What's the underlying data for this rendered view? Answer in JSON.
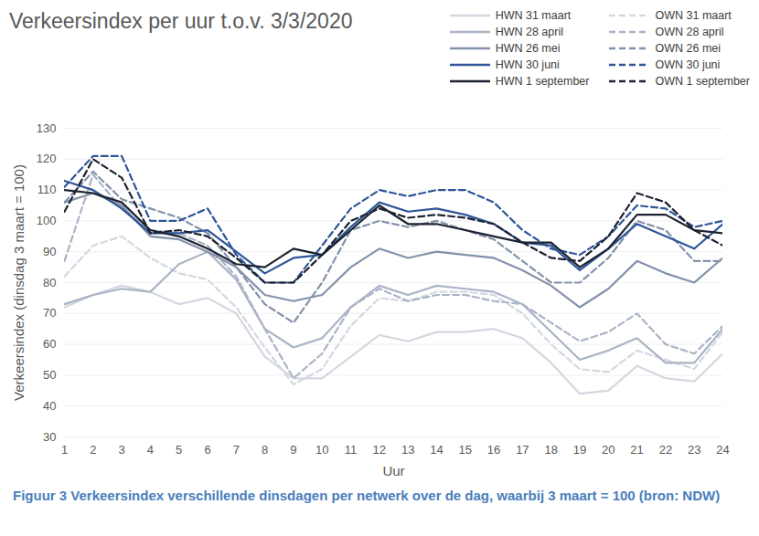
{
  "chart_data": {
    "type": "line",
    "title": "Verkeersindex per uur t.o.v. 3/3/2020",
    "x_label": "Uur",
    "y_label": "Verkeersindex (dinsdag 3 maart = 100)",
    "caption": "Figuur 3 Verkeersindex verschillende dinsdagen per netwerk over de dag, waarbij 3 maart = 100 (bron: NDW)",
    "x": [
      1,
      2,
      3,
      4,
      5,
      6,
      7,
      8,
      9,
      10,
      11,
      12,
      13,
      14,
      15,
      16,
      17,
      18,
      19,
      20,
      21,
      22,
      23,
      24
    ],
    "xlim": [
      1,
      24
    ],
    "xticks": [
      1,
      2,
      3,
      4,
      5,
      6,
      7,
      8,
      9,
      10,
      11,
      12,
      13,
      14,
      15,
      16,
      17,
      18,
      19,
      20,
      21,
      22,
      23,
      24
    ],
    "ylim": [
      30,
      130
    ],
    "yticks": [
      30,
      40,
      50,
      60,
      70,
      80,
      90,
      100,
      110,
      120,
      130
    ],
    "grid": true,
    "legend": "top-right",
    "series": [
      {
        "name": "HWN 31 maart",
        "color": "#d3d8e0",
        "line_style": "solid",
        "values": [
          72,
          76,
          79,
          77,
          73,
          75,
          70,
          56,
          49,
          49,
          56,
          63,
          61,
          64,
          64,
          65,
          62,
          54,
          44,
          45,
          53,
          49,
          48,
          57
        ]
      },
      {
        "name": "OWN 31 maart",
        "color": "#d3d8e0",
        "line_style": "dashed",
        "values": [
          82,
          92,
          95,
          88,
          83,
          81,
          72,
          59,
          47,
          52,
          66,
          75,
          74,
          77,
          77,
          76,
          70,
          60,
          52,
          51,
          58,
          55,
          52,
          64
        ]
      },
      {
        "name": "HWN 28 april",
        "color": "#aab4c6",
        "line_style": "solid",
        "values": [
          73,
          76,
          78,
          77,
          86,
          90,
          81,
          65,
          59,
          62,
          72,
          79,
          76,
          79,
          78,
          77,
          73,
          64,
          55,
          58,
          62,
          54,
          54,
          65
        ]
      },
      {
        "name": "OWN 28 april",
        "color": "#aab4c6",
        "line_style": "dashed",
        "values": [
          87,
          115,
          104,
          97,
          96,
          92,
          82,
          65,
          49,
          57,
          72,
          78,
          74,
          76,
          76,
          74,
          73,
          67,
          61,
          64,
          70,
          60,
          57,
          66
        ]
      },
      {
        "name": "HWN 26 mei",
        "color": "#8392aa",
        "line_style": "solid",
        "values": [
          106,
          109,
          105,
          95,
          94,
          90,
          85,
          76,
          74,
          76,
          85,
          91,
          88,
          90,
          89,
          88,
          84,
          79,
          72,
          78,
          87,
          83,
          80,
          88
        ]
      },
      {
        "name": "OWN 26 mei",
        "color": "#8392aa",
        "line_style": "dashed",
        "values": [
          106,
          116,
          107,
          104,
          101,
          96,
          85,
          73,
          67,
          80,
          97,
          100,
          98,
          100,
          97,
          94,
          87,
          80,
          80,
          88,
          100,
          97,
          87,
          87
        ]
      },
      {
        "name": "HWN 30 juni",
        "color": "#2e5597",
        "line_style": "solid",
        "values": [
          113,
          110,
          104,
          96,
          96,
          97,
          90,
          83,
          88,
          89,
          98,
          106,
          103,
          104,
          102,
          99,
          93,
          92,
          84,
          91,
          99,
          95,
          91,
          99
        ]
      },
      {
        "name": "OWN 30 juni",
        "color": "#2e5597",
        "line_style": "dashed",
        "values": [
          111,
          121,
          121,
          100,
          100,
          104,
          89,
          80,
          80,
          92,
          104,
          110,
          108,
          110,
          110,
          106,
          97,
          91,
          89,
          95,
          105,
          104,
          98,
          100
        ]
      },
      {
        "name": "HWN 1 september",
        "color": "#1c2230",
        "line_style": "solid",
        "values": [
          110,
          109,
          106,
          97,
          95,
          91,
          86,
          85,
          91,
          89,
          97,
          105,
          99,
          99,
          97,
          95,
          93,
          93,
          85,
          91,
          102,
          102,
          97,
          96
        ]
      },
      {
        "name": "OWN 1 september",
        "color": "#1c2230",
        "line_style": "dashed",
        "values": [
          103,
          120,
          114,
          96,
          97,
          95,
          88,
          80,
          80,
          89,
          100,
          104,
          101,
          102,
          101,
          99,
          93,
          88,
          87,
          95,
          109,
          106,
          97,
          92
        ]
      }
    ]
  }
}
